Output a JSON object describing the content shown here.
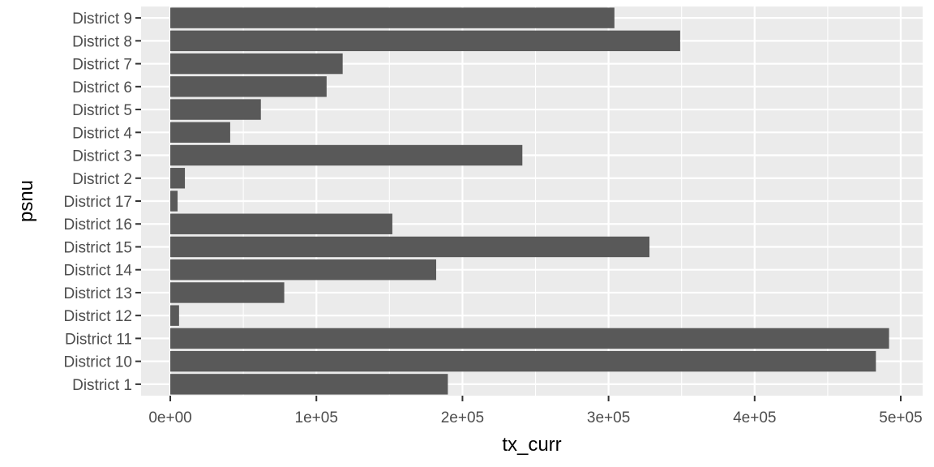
{
  "chart_data": {
    "type": "bar",
    "orientation": "horizontal",
    "title": "",
    "xlabel": "tx_curr",
    "ylabel": "psnu",
    "xlim": [
      -20000,
      515000
    ],
    "x_ticks": [
      0,
      100000,
      200000,
      300000,
      400000,
      500000
    ],
    "x_tick_labels": [
      "0e+00",
      "1e+05",
      "2e+05",
      "3e+05",
      "4e+05",
      "5e+05"
    ],
    "categories": [
      "District 1",
      "District 10",
      "District 11",
      "District 12",
      "District 13",
      "District 14",
      "District 15",
      "District 16",
      "District 17",
      "District 2",
      "District 3",
      "District 4",
      "District 5",
      "District 6",
      "District 7",
      "District 8",
      "District 9"
    ],
    "values": [
      190000,
      483000,
      492000,
      6000,
      78000,
      182000,
      328000,
      152000,
      5000,
      10000,
      241000,
      41000,
      62000,
      107000,
      118000,
      349000,
      304000
    ],
    "grid": true,
    "legend": "none",
    "colors": {
      "panel_bg": "#ebebeb",
      "grid_major": "#ffffff",
      "bar_fill": "#595959",
      "tick_mark": "#333333"
    }
  }
}
